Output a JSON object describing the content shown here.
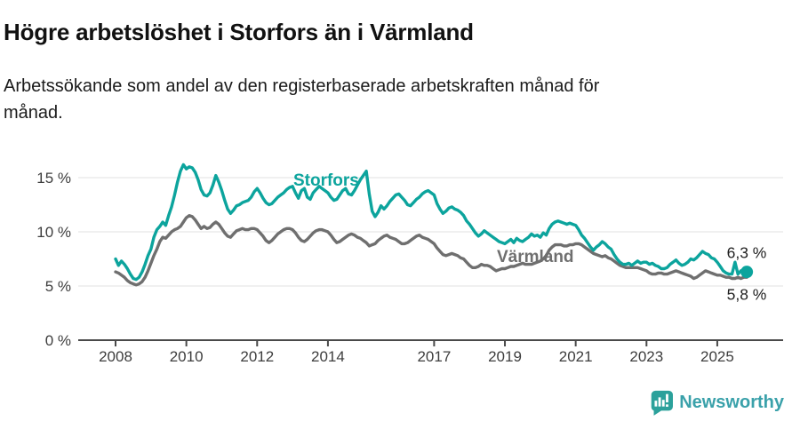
{
  "header": {
    "title": "Högre arbetslöshet i Storfors än i Värmland",
    "subtitle": "Arbetssökande som andel av den registerbaserade arbetskraften månad för månad."
  },
  "footer": {
    "brand": "Newsworthy"
  },
  "colors": {
    "storfors": "#0ca49d",
    "varmland": "#6f6f6f",
    "gridline": "#e2e2e2",
    "axis": "#4a4a4a",
    "brand_teal": "#3aa1aa"
  },
  "chart_data": {
    "type": "line",
    "title": "Högre arbetslöshet i Storfors än i Värmland",
    "subtitle": "Arbetssökande som andel av den registerbaserade arbetskraften månad för månad.",
    "x_unit": "year-month",
    "x_start": 2008.0,
    "x_step": 0.0833333,
    "x_ticks": [
      2008,
      2010,
      2012,
      2014,
      2017,
      2019,
      2021,
      2023,
      2025
    ],
    "y_ticks": [
      {
        "value": 0,
        "label": "0 %"
      },
      {
        "value": 5,
        "label": "5 %"
      },
      {
        "value": 10,
        "label": "10 %"
      },
      {
        "value": 15,
        "label": "15 %"
      }
    ],
    "ylim": [
      0,
      17.5
    ],
    "grid": "horizontal-only",
    "legend_position": "inline-labels",
    "series": [
      {
        "name": "Storfors",
        "color": "#0ca49d",
        "end_dot": true,
        "values": [
          7.5,
          6.9,
          7.3,
          7.0,
          6.6,
          6.1,
          5.7,
          5.6,
          5.8,
          6.3,
          7.0,
          7.8,
          8.4,
          9.5,
          10.2,
          10.5,
          10.9,
          10.6,
          11.5,
          12.3,
          13.4,
          14.6,
          15.6,
          16.2,
          15.8,
          16.0,
          15.9,
          15.5,
          14.8,
          13.9,
          13.4,
          13.3,
          13.6,
          14.3,
          15.2,
          14.6,
          13.8,
          12.9,
          12.1,
          11.7,
          12.0,
          12.4,
          12.5,
          12.7,
          12.8,
          12.9,
          13.2,
          13.7,
          14.0,
          13.6,
          13.1,
          12.7,
          12.5,
          12.6,
          12.9,
          13.2,
          13.4,
          13.6,
          13.9,
          14.1,
          14.2,
          13.6,
          13.1,
          13.8,
          14.0,
          13.2,
          13.0,
          13.6,
          13.9,
          14.2,
          14.0,
          13.8,
          13.6,
          13.2,
          12.9,
          13.0,
          13.4,
          13.8,
          14.0,
          13.5,
          13.4,
          13.8,
          14.3,
          14.8,
          15.2,
          15.6,
          13.5,
          11.9,
          11.4,
          11.8,
          12.4,
          12.1,
          12.4,
          12.8,
          13.1,
          13.4,
          13.5,
          13.2,
          12.9,
          12.5,
          12.4,
          12.7,
          13.0,
          13.2,
          13.5,
          13.7,
          13.8,
          13.6,
          13.4,
          12.6,
          12.1,
          11.7,
          11.9,
          12.2,
          12.3,
          12.1,
          12.0,
          11.8,
          11.5,
          11.0,
          10.7,
          10.3,
          9.9,
          9.6,
          9.8,
          10.1,
          9.9,
          9.7,
          9.5,
          9.3,
          9.1,
          9.0,
          8.9,
          9.1,
          9.3,
          9.0,
          9.4,
          9.2,
          9.1,
          9.3,
          9.5,
          9.8,
          9.6,
          9.7,
          9.5,
          9.9,
          9.7,
          10.3,
          10.7,
          10.9,
          11.0,
          10.9,
          10.8,
          10.7,
          10.8,
          10.7,
          10.6,
          10.2,
          9.7,
          9.4,
          9.0,
          8.6,
          8.3,
          8.6,
          8.8,
          9.1,
          8.9,
          8.6,
          8.4,
          7.9,
          7.5,
          7.2,
          7.0,
          7.0,
          7.1,
          6.9,
          7.1,
          7.3,
          7.1,
          7.2,
          7.2,
          7.0,
          7.1,
          6.9,
          6.8,
          6.6,
          6.6,
          6.7,
          7.0,
          7.2,
          7.4,
          7.1,
          6.9,
          7.0,
          7.2,
          7.5,
          7.4,
          7.6,
          7.9,
          8.2,
          8.0,
          7.9,
          7.6,
          7.5,
          7.2,
          6.8,
          6.4,
          6.2,
          6.1,
          6.1,
          7.2,
          6.1,
          6.4,
          6.2,
          6.3
        ]
      },
      {
        "name": "Värmland",
        "color": "#6f6f6f",
        "end_dot": false,
        "values": [
          6.3,
          6.2,
          6.0,
          5.8,
          5.5,
          5.3,
          5.2,
          5.1,
          5.2,
          5.4,
          5.8,
          6.4,
          7.1,
          7.8,
          8.4,
          9.1,
          9.5,
          9.4,
          9.7,
          10.0,
          10.2,
          10.3,
          10.5,
          10.9,
          11.3,
          11.5,
          11.4,
          11.1,
          10.7,
          10.3,
          10.5,
          10.3,
          10.4,
          10.7,
          10.9,
          10.7,
          10.3,
          9.9,
          9.6,
          9.5,
          9.8,
          10.1,
          10.2,
          10.3,
          10.2,
          10.2,
          10.3,
          10.3,
          10.2,
          9.9,
          9.6,
          9.2,
          9.0,
          9.2,
          9.5,
          9.8,
          10.0,
          10.2,
          10.3,
          10.3,
          10.2,
          9.9,
          9.5,
          9.2,
          9.1,
          9.3,
          9.6,
          9.9,
          10.1,
          10.2,
          10.2,
          10.1,
          10.0,
          9.7,
          9.3,
          9.0,
          9.1,
          9.3,
          9.5,
          9.7,
          9.8,
          9.7,
          9.5,
          9.4,
          9.2,
          9.0,
          8.7,
          8.8,
          8.9,
          9.2,
          9.4,
          9.6,
          9.7,
          9.5,
          9.4,
          9.3,
          9.1,
          8.9,
          8.9,
          9.0,
          9.2,
          9.4,
          9.6,
          9.7,
          9.5,
          9.4,
          9.3,
          9.1,
          8.9,
          8.5,
          8.2,
          7.9,
          7.8,
          7.9,
          8.0,
          7.9,
          7.8,
          7.6,
          7.5,
          7.2,
          6.9,
          6.7,
          6.7,
          6.8,
          7.0,
          6.9,
          6.9,
          6.8,
          6.6,
          6.4,
          6.5,
          6.6,
          6.6,
          6.7,
          6.8,
          6.8,
          6.9,
          7.0,
          7.1,
          7.0,
          7.0,
          7.0,
          7.1,
          7.2,
          7.3,
          7.5,
          7.8,
          8.3,
          8.6,
          8.8,
          8.8,
          8.8,
          8.7,
          8.7,
          8.8,
          8.8,
          8.9,
          8.9,
          8.8,
          8.6,
          8.4,
          8.2,
          8.0,
          7.9,
          7.8,
          7.7,
          7.8,
          7.6,
          7.5,
          7.3,
          7.1,
          6.9,
          6.8,
          6.7,
          6.7,
          6.7,
          6.7,
          6.7,
          6.6,
          6.5,
          6.4,
          6.2,
          6.1,
          6.1,
          6.2,
          6.2,
          6.1,
          6.1,
          6.2,
          6.3,
          6.4,
          6.3,
          6.2,
          6.1,
          6.0,
          5.9,
          5.7,
          5.8,
          6.0,
          6.2,
          6.4,
          6.3,
          6.2,
          6.1,
          6.0,
          6.0,
          5.9,
          5.8,
          5.8,
          5.7,
          5.7,
          5.8,
          5.7,
          5.8,
          5.8
        ]
      }
    ],
    "series_labels": [
      {
        "text": "Storfors",
        "x": 2013.95,
        "y": 14.25,
        "color": "#0ca49d"
      },
      {
        "text": "Värmland",
        "x": 2019.86,
        "y": 7.2,
        "color": "#6f6f6f"
      }
    ],
    "end_annotations": [
      {
        "text": "6,3 %",
        "x": 2025.83,
        "y": 7.6
      },
      {
        "text": "5,8 %",
        "x": 2025.83,
        "y": 3.75
      }
    ]
  }
}
